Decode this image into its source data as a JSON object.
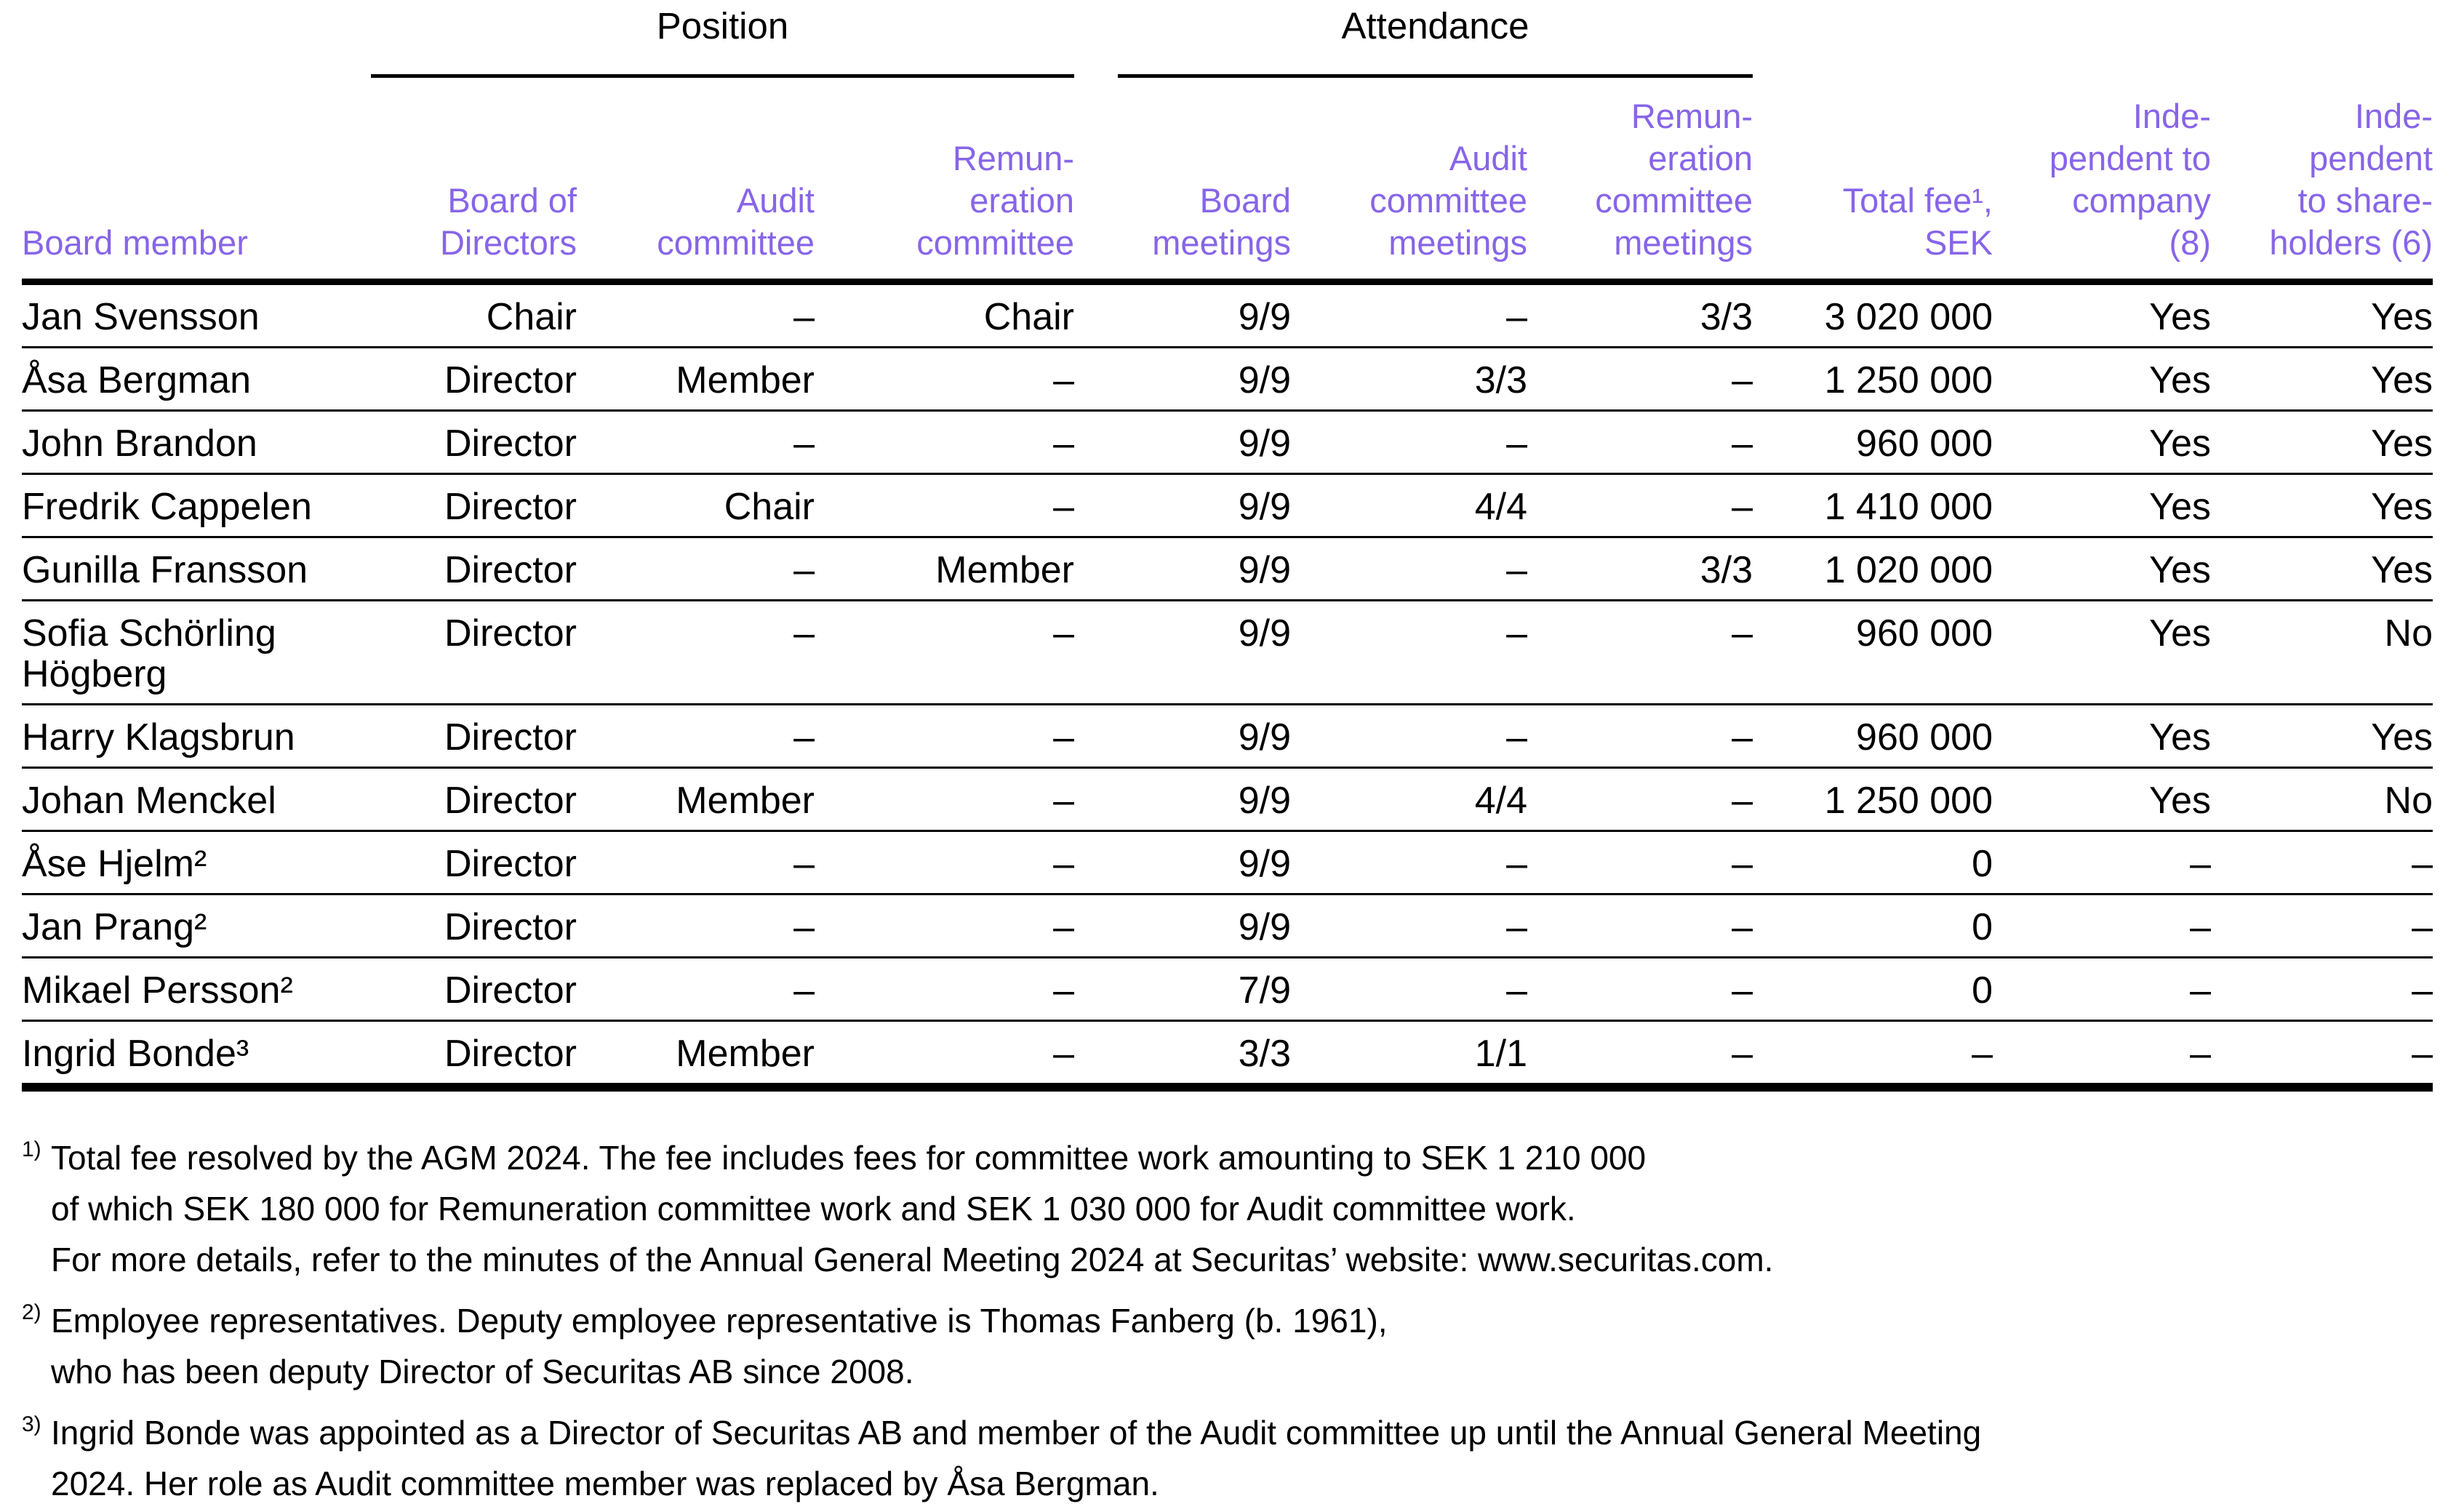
{
  "colors": {
    "accent_purple": "#8765E8",
    "text": "#000000",
    "background": "#ffffff"
  },
  "table": {
    "group_header": {
      "position_label": "Position",
      "attendance_label": "Attendance"
    },
    "columns": {
      "m": "Board member",
      "bod": "Board of\nDirectors",
      "ac": "Audit\ncommittee",
      "rc": "Remun-\neration\ncommittee",
      "bm": "Board\nmeetings",
      "acm": "Audit\ncommittee\nmeetings",
      "rcm": "Remun-\neration\ncommittee\nmeetings",
      "fee": "Total fee¹,\nSEK",
      "ic": "Inde-\npendent to\ncompany\n(8)",
      "is": "Inde-\npendent\nto share-\nholders (6)"
    },
    "rows": [
      {
        "m": "Jan Svensson",
        "bod": "Chair",
        "ac": "–",
        "rc": "Chair",
        "bm": "9/9",
        "acm": "–",
        "rcm": "3/3",
        "fee": "3 020 000",
        "ic": "Yes",
        "is": "Yes"
      },
      {
        "m": "Åsa Bergman",
        "bod": "Director",
        "ac": "Member",
        "rc": "–",
        "bm": "9/9",
        "acm": "3/3",
        "rcm": "–",
        "fee": "1 250 000",
        "ic": "Yes",
        "is": "Yes"
      },
      {
        "m": "John Brandon",
        "bod": "Director",
        "ac": "–",
        "rc": "–",
        "bm": "9/9",
        "acm": "–",
        "rcm": "–",
        "fee": "960 000",
        "ic": "Yes",
        "is": "Yes"
      },
      {
        "m": "Fredrik Cappelen",
        "bod": "Director",
        "ac": "Chair",
        "rc": "–",
        "bm": "9/9",
        "acm": "4/4",
        "rcm": "–",
        "fee": "1 410 000",
        "ic": "Yes",
        "is": "Yes"
      },
      {
        "m": "Gunilla Fransson",
        "bod": "Director",
        "ac": "–",
        "rc": "Member",
        "bm": "9/9",
        "acm": "–",
        "rcm": "3/3",
        "fee": "1 020 000",
        "ic": "Yes",
        "is": "Yes"
      },
      {
        "m": "Sofia Schörling Högberg",
        "bod": "Director",
        "ac": "–",
        "rc": "–",
        "bm": "9/9",
        "acm": "–",
        "rcm": "–",
        "fee": "960 000",
        "ic": "Yes",
        "is": "No"
      },
      {
        "m": "Harry Klagsbrun",
        "bod": "Director",
        "ac": "–",
        "rc": "–",
        "bm": "9/9",
        "acm": "–",
        "rcm": "–",
        "fee": "960 000",
        "ic": "Yes",
        "is": "Yes"
      },
      {
        "m": "Johan Menckel",
        "bod": "Director",
        "ac": "Member",
        "rc": "–",
        "bm": "9/9",
        "acm": "4/4",
        "rcm": "–",
        "fee": "1 250 000",
        "ic": "Yes",
        "is": "No"
      },
      {
        "m": "Åse Hjelm²",
        "bod": "Director",
        "ac": "–",
        "rc": "–",
        "bm": "9/9",
        "acm": "–",
        "rcm": "–",
        "fee": "0",
        "ic": "–",
        "is": "–"
      },
      {
        "m": "Jan Prang²",
        "bod": "Director",
        "ac": "–",
        "rc": "–",
        "bm": "9/9",
        "acm": "–",
        "rcm": "–",
        "fee": "0",
        "ic": "–",
        "is": "–"
      },
      {
        "m": "Mikael Persson²",
        "bod": "Director",
        "ac": "–",
        "rc": "–",
        "bm": "7/9",
        "acm": "–",
        "rcm": "–",
        "fee": "0",
        "ic": "–",
        "is": "–"
      },
      {
        "m": "Ingrid Bonde³",
        "bod": "Director",
        "ac": "Member",
        "rc": "–",
        "bm": "3/3",
        "acm": "1/1",
        "rcm": "–",
        "fee": "–",
        "ic": "–",
        "is": "–"
      }
    ]
  },
  "footnotes": [
    {
      "marker": "1)",
      "text": "Total fee resolved by the AGM 2024. The fee includes fees for committee work amounting to SEK 1 210 000\nof which SEK 180 000 for Remuneration committee work and SEK 1 030 000 for Audit committee work.\nFor more details, refer to the minutes of the Annual General Meeting 2024 at Securitas’ website: www.securitas.com."
    },
    {
      "marker": "2)",
      "text": "Employee representatives. Deputy employee representative is Thomas Fanberg (b. 1961),\nwho has been deputy Director of Securitas AB since 2008."
    },
    {
      "marker": "3)",
      "text": "Ingrid Bonde was appointed as a Director of Securitas AB and member of the Audit committee up until the Annual General Meeting\n2024. Her role as Audit committee member was replaced by Åsa Bergman."
    }
  ]
}
